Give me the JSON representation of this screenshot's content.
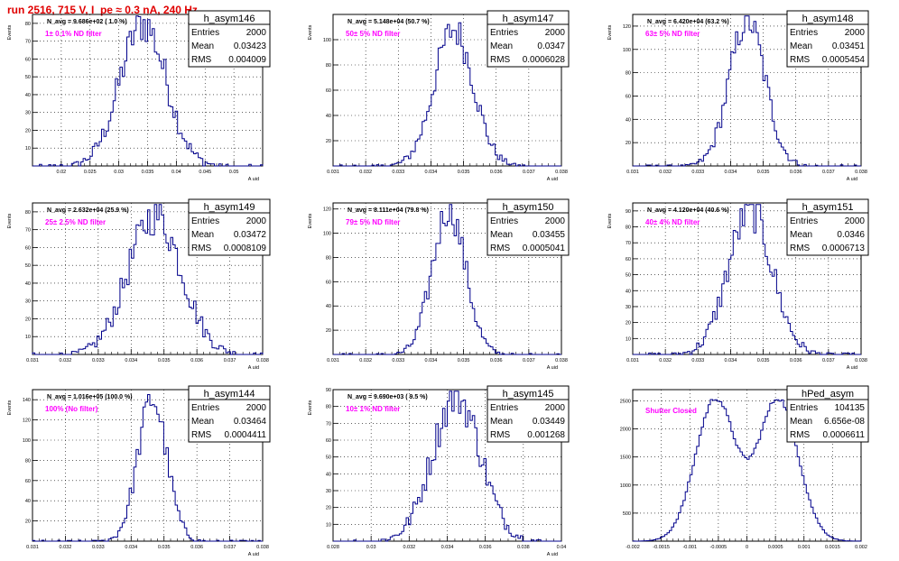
{
  "header": {
    "run_title": "run 2516,   715 V, I_pe ≈ 0.3 nA, 240 Hz"
  },
  "colors": {
    "histogram": "#00008b",
    "annotation": "#ff00ff",
    "title": "#e00000",
    "frame": "#000000",
    "grid": "#000000"
  },
  "stats_labels": {
    "entries": "Entries",
    "mean": "Mean",
    "rms": "RMS"
  },
  "chart_data": [
    {
      "type": "histogram",
      "name": "h_asym146",
      "navg": "N_avg = 9.686e+02 ( 1.0 %)",
      "filter": "1± 0.1% ND filter",
      "entries": "2000",
      "mean": "0.03423",
      "rms": "0.004009",
      "xlim": [
        0.015,
        0.055
      ],
      "ylim": [
        0,
        85
      ],
      "xticks": [
        0.02,
        0.025,
        0.03,
        0.035,
        0.04,
        0.045,
        0.05
      ],
      "xticklabels": [
        "0.02",
        "0.025",
        "0.03",
        "0.035",
        "0.04",
        "0.045",
        "0.05"
      ],
      "yticks": [
        10,
        20,
        30,
        40,
        50,
        60,
        70,
        80
      ],
      "xlabel": "A_uid",
      "ylabel": "Events",
      "dist": {
        "type": "gauss",
        "mu": 0.03423,
        "sigma": 0.004009
      },
      "peak": 80
    },
    {
      "type": "histogram",
      "name": "h_asym147",
      "navg": "N_avg = 5.148e+04 (50.7 %)",
      "filter": "50± 5% ND filter",
      "entries": "2000",
      "mean": "0.0347",
      "rms": "0.0006028",
      "xlim": [
        0.031,
        0.038
      ],
      "ylim": [
        0,
        120
      ],
      "xticks": [
        0.031,
        0.032,
        0.033,
        0.034,
        0.035,
        0.036,
        0.037,
        0.038
      ],
      "xticklabels": [
        "0.031",
        "0.032",
        "0.033",
        "0.034",
        "0.035",
        "0.036",
        "0.037",
        "0.038"
      ],
      "yticks": [
        20,
        40,
        60,
        80,
        100
      ],
      "xlabel": "A_uid",
      "ylabel": "Events",
      "dist": {
        "type": "gauss",
        "mu": 0.0347,
        "sigma": 0.0006028
      },
      "peak": 108
    },
    {
      "type": "histogram",
      "name": "h_asym148",
      "navg": "N_avg = 6.420e+04 (63.2 %)",
      "filter": "63± 5% ND filter",
      "entries": "2000",
      "mean": "0.03451",
      "rms": "0.0005454",
      "xlim": [
        0.031,
        0.038
      ],
      "ylim": [
        0,
        130
      ],
      "xticks": [
        0.031,
        0.032,
        0.033,
        0.034,
        0.035,
        0.036,
        0.037,
        0.038
      ],
      "xticklabels": [
        "0.031",
        "0.032",
        "0.033",
        "0.034",
        "0.035",
        "0.036",
        "0.037",
        "0.038"
      ],
      "yticks": [
        20,
        40,
        60,
        80,
        100,
        120
      ],
      "xlabel": "A_uid",
      "ylabel": "Events",
      "dist": {
        "type": "gauss",
        "mu": 0.03451,
        "sigma": 0.0005454
      },
      "peak": 125
    },
    {
      "type": "histogram",
      "name": "h_asym149",
      "navg": "N_avg = 2.632e+04 (25.9 %)",
      "filter": "25± 2.5% ND filter",
      "entries": "2000",
      "mean": "0.03472",
      "rms": "0.0008109",
      "xlim": [
        0.031,
        0.038
      ],
      "ylim": [
        0,
        85
      ],
      "xticks": [
        0.031,
        0.032,
        0.033,
        0.034,
        0.035,
        0.036,
        0.037,
        0.038
      ],
      "xticklabels": [
        "0.031",
        "0.032",
        "0.033",
        "0.034",
        "0.035",
        "0.036",
        "0.037",
        "0.038"
      ],
      "yticks": [
        10,
        20,
        30,
        40,
        50,
        60,
        70,
        80
      ],
      "xlabel": "A_uid",
      "ylabel": "Events",
      "dist": {
        "type": "gauss",
        "mu": 0.03472,
        "sigma": 0.0008109
      },
      "peak": 78
    },
    {
      "type": "histogram",
      "name": "h_asym150",
      "navg": "N_avg = 8.111e+04 (79.8 %)",
      "filter": "79± 5% ND filter",
      "entries": "2000",
      "mean": "0.03455",
      "rms": "0.0005041",
      "xlim": [
        0.031,
        0.038
      ],
      "ylim": [
        0,
        125
      ],
      "xticks": [
        0.031,
        0.032,
        0.033,
        0.034,
        0.035,
        0.036,
        0.037,
        0.038
      ],
      "xticklabels": [
        "0.031",
        "0.032",
        "0.033",
        "0.034",
        "0.035",
        "0.036",
        "0.037",
        "0.038"
      ],
      "yticks": [
        20,
        40,
        60,
        80,
        100,
        120
      ],
      "xlabel": "A_uid",
      "ylabel": "Events",
      "dist": {
        "type": "gauss",
        "mu": 0.03455,
        "sigma": 0.0005041
      },
      "peak": 120
    },
    {
      "type": "histogram",
      "name": "h_asym151",
      "navg": "N_avg = 4.120e+04 (40.6 %)",
      "filter": "40± 4% ND filter",
      "entries": "2000",
      "mean": "0.0346",
      "rms": "0.0006713",
      "xlim": [
        0.031,
        0.038
      ],
      "ylim": [
        0,
        95
      ],
      "xticks": [
        0.031,
        0.032,
        0.033,
        0.034,
        0.035,
        0.036,
        0.037,
        0.038
      ],
      "xticklabels": [
        "0.031",
        "0.032",
        "0.033",
        "0.034",
        "0.035",
        "0.036",
        "0.037",
        "0.038"
      ],
      "yticks": [
        10,
        20,
        30,
        40,
        50,
        60,
        70,
        80,
        90
      ],
      "xlabel": "A_uid",
      "ylabel": "Events",
      "dist": {
        "type": "gauss",
        "mu": 0.0346,
        "sigma": 0.0006713
      },
      "peak": 90
    },
    {
      "type": "histogram",
      "name": "h_asym144",
      "navg": "N_avg = 1.016e+05 (100.0 %)",
      "filter": "100% (No filter)",
      "entries": "2000",
      "mean": "0.03464",
      "rms": "0.0004411",
      "xlim": [
        0.031,
        0.038
      ],
      "ylim": [
        0,
        150
      ],
      "xticks": [
        0.031,
        0.032,
        0.033,
        0.034,
        0.035,
        0.036,
        0.037,
        0.038
      ],
      "xticklabels": [
        "0.031",
        "0.032",
        "0.033",
        "0.034",
        "0.035",
        "0.036",
        "0.037",
        "0.038"
      ],
      "yticks": [
        20,
        40,
        60,
        80,
        100,
        120,
        140
      ],
      "xlabel": "A_uid",
      "ylabel": "Events",
      "dist": {
        "type": "gauss",
        "mu": 0.03464,
        "sigma": 0.0004411
      },
      "peak": 140
    },
    {
      "type": "histogram",
      "name": "h_asym145",
      "navg": "N_avg = 9.690e+03 ( 9.5 %)",
      "filter": "10± 1% ND filter",
      "entries": "2000",
      "mean": "0.03449",
      "rms": "0.001268",
      "xlim": [
        0.028,
        0.04
      ],
      "ylim": [
        0,
        90
      ],
      "xticks": [
        0.028,
        0.03,
        0.032,
        0.034,
        0.036,
        0.038,
        0.04
      ],
      "xticklabels": [
        "0.028",
        "0.03",
        "0.032",
        "0.034",
        "0.036",
        "0.038",
        "0.04"
      ],
      "yticks": [
        10,
        20,
        30,
        40,
        50,
        60,
        70,
        80,
        90
      ],
      "xlabel": "A_uid",
      "ylabel": "Events",
      "dist": {
        "type": "gauss",
        "mu": 0.03449,
        "sigma": 0.001268
      },
      "peak": 86
    },
    {
      "type": "histogram",
      "name": "hPed_asym",
      "navg": "",
      "filter": "Shutter Closed",
      "entries": "104135",
      "mean": "6.656e-08",
      "rms": "0.0006611",
      "xlim": [
        -0.002,
        0.002
      ],
      "ylim": [
        0,
        2700
      ],
      "xticks": [
        -0.002,
        -0.0015,
        -0.001,
        -0.0005,
        0,
        0.0005,
        0.001,
        0.0015,
        0.002
      ],
      "xticklabels": [
        "-0.002",
        "-0.0015",
        "-0.001",
        "-0.0005",
        "0",
        "0.0005",
        "0.001",
        "0.0015",
        "0.002"
      ],
      "yticks": [
        500,
        1000,
        1500,
        2000,
        2500
      ],
      "xlabel": "",
      "ylabel": "",
      "dist": {
        "type": "bimodal",
        "mu1": -0.00055,
        "mu2": 0.00055,
        "sigma": 0.00035,
        "dip": 0.45
      },
      "peak": 2550
    }
  ]
}
